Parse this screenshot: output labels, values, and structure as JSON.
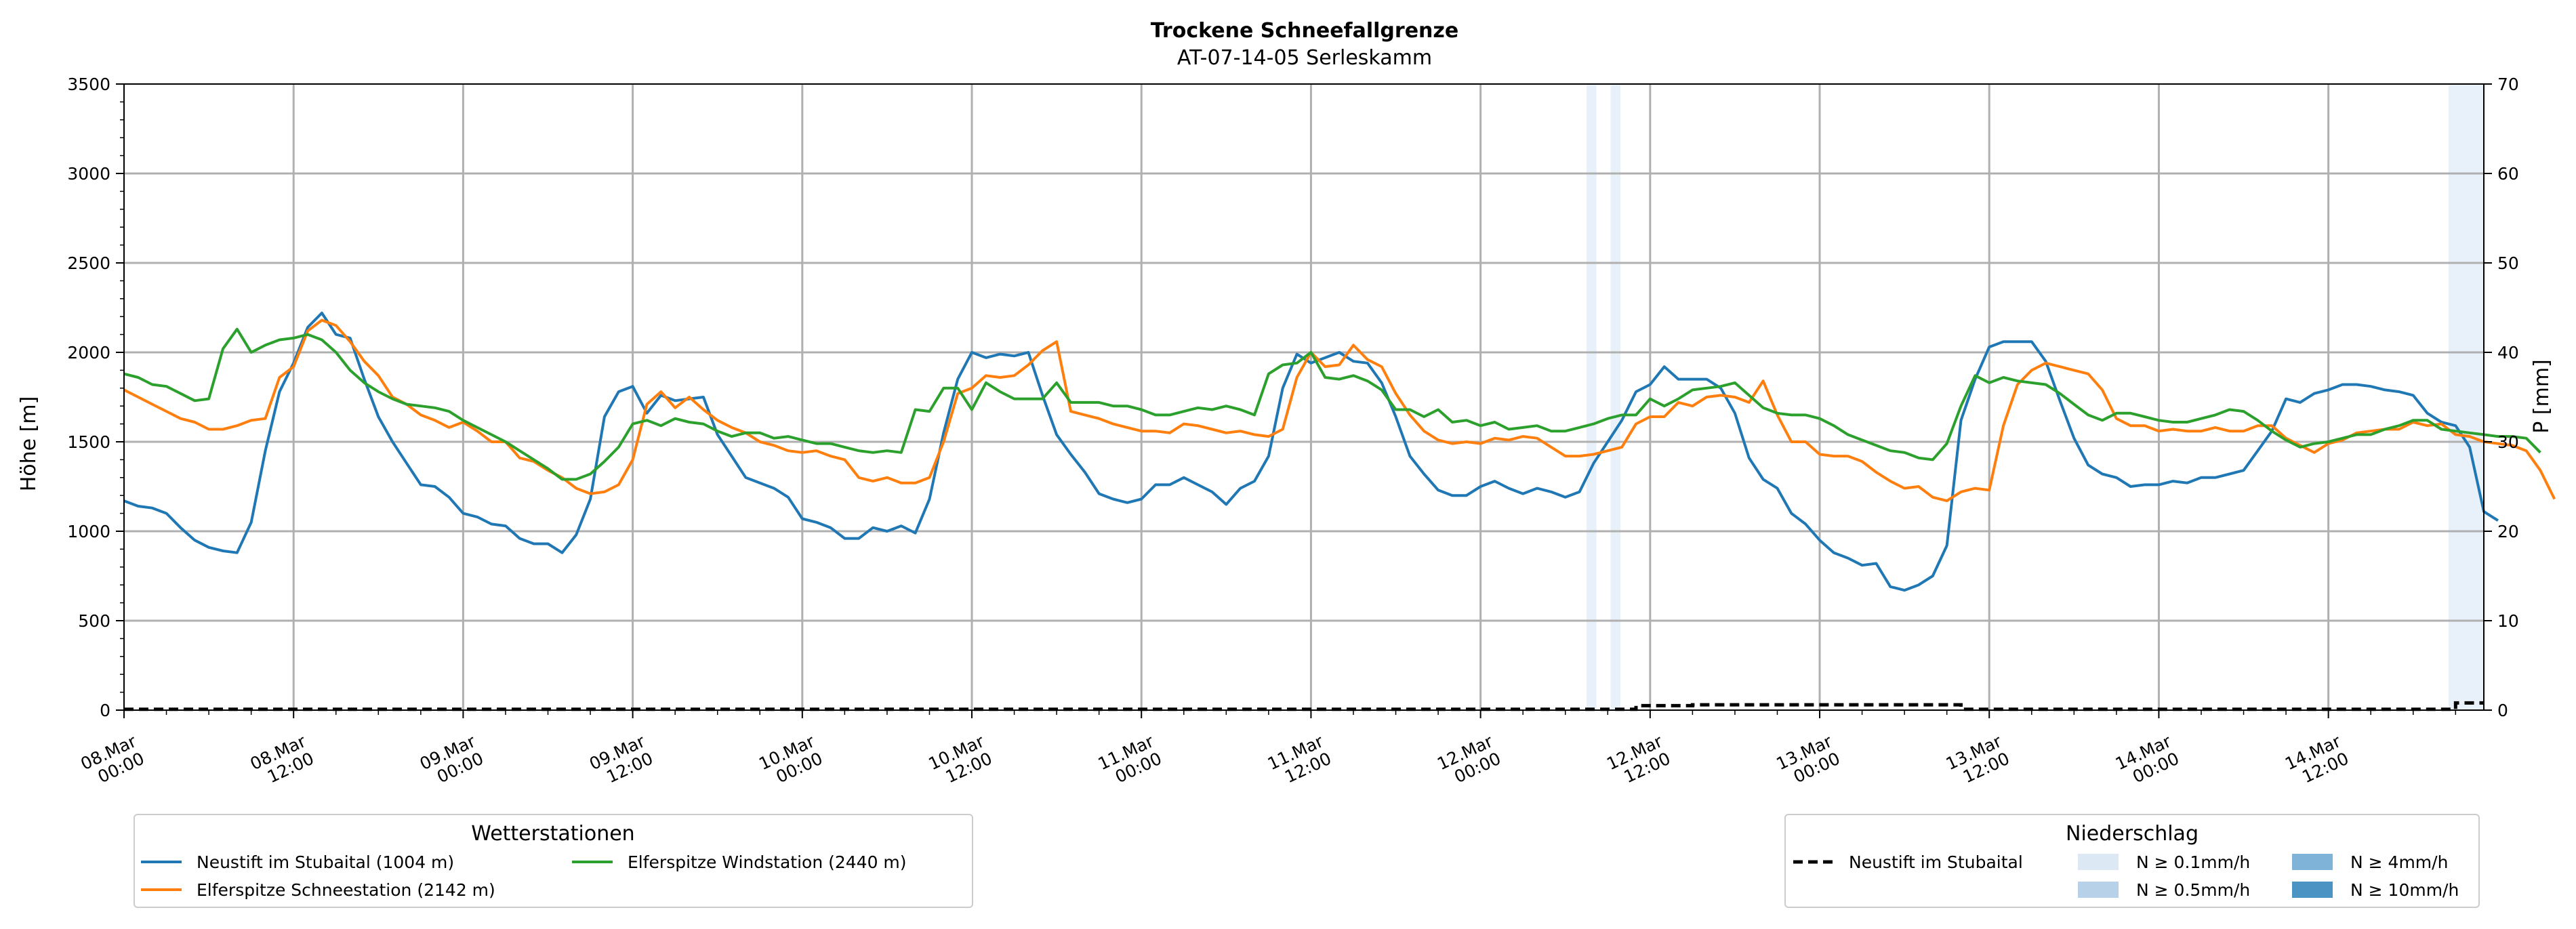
{
  "chart_data": {
    "type": "line",
    "title": "Trockene Schneefallgrenze",
    "subtitle": "AT-07-14-05 Serleskamm",
    "ylabel": "Höhe [m]",
    "ylabel_right": "P [mm]",
    "ylim": [
      0,
      3500
    ],
    "ylim_right": [
      0,
      70
    ],
    "yticks": [
      0,
      500,
      1000,
      1500,
      2000,
      2500,
      3000,
      3500
    ],
    "yticks_right": [
      0,
      10,
      20,
      30,
      40,
      50,
      60,
      70
    ],
    "grid": true,
    "x_start": "08.Mar 00:00",
    "x_end": "14.Mar 23:00",
    "x_step_hours": 1,
    "xticks": [
      {
        "hour": 0,
        "l1": "08.Mar",
        "l2": "00:00"
      },
      {
        "hour": 12,
        "l1": "08.Mar",
        "l2": "12:00"
      },
      {
        "hour": 24,
        "l1": "09.Mar",
        "l2": "00:00"
      },
      {
        "hour": 36,
        "l1": "09.Mar",
        "l2": "12:00"
      },
      {
        "hour": 48,
        "l1": "10.Mar",
        "l2": "00:00"
      },
      {
        "hour": 60,
        "l1": "10.Mar",
        "l2": "12:00"
      },
      {
        "hour": 72,
        "l1": "11.Mar",
        "l2": "00:00"
      },
      {
        "hour": 84,
        "l1": "11.Mar",
        "l2": "12:00"
      },
      {
        "hour": 96,
        "l1": "12.Mar",
        "l2": "00:00"
      },
      {
        "hour": 108,
        "l1": "12.Mar",
        "l2": "12:00"
      },
      {
        "hour": 120,
        "l1": "13.Mar",
        "l2": "00:00"
      },
      {
        "hour": 132,
        "l1": "13.Mar",
        "l2": "12:00"
      },
      {
        "hour": 144,
        "l1": "14.Mar",
        "l2": "00:00"
      },
      {
        "hour": 156,
        "l1": "14.Mar",
        "l2": "12:00"
      }
    ],
    "series": [
      {
        "name": "Neustift im Stubaital (1004 m)",
        "color": "#1f77b4",
        "values": [
          1170,
          1140,
          1130,
          1100,
          1020,
          950,
          910,
          890,
          880,
          1050,
          1450,
          1780,
          1940,
          2140,
          2220,
          2100,
          2080,
          1850,
          1640,
          1500,
          1380,
          1260,
          1250,
          1190,
          1100,
          1080,
          1040,
          1030,
          960,
          930,
          930,
          880,
          980,
          1180,
          1640,
          1780,
          1810,
          1660,
          1760,
          1730,
          1740,
          1750,
          1540,
          1420,
          1300,
          1270,
          1240,
          1190,
          1070,
          1050,
          1020,
          960,
          960,
          1020,
          1000,
          1030,
          990,
          1180,
          1550,
          1850,
          2000,
          1970,
          1990,
          1980,
          2000,
          1760,
          1540,
          1430,
          1330,
          1210,
          1180,
          1160,
          1180,
          1260,
          1260,
          1300,
          1260,
          1220,
          1150,
          1240,
          1280,
          1420,
          1800,
          1990,
          1940,
          1970,
          2000,
          1950,
          1940,
          1830,
          1640,
          1420,
          1320,
          1230,
          1200,
          1200,
          1250,
          1280,
          1240,
          1210,
          1240,
          1220,
          1190,
          1220,
          1380,
          1500,
          1620,
          1780,
          1820,
          1920,
          1850,
          1850,
          1850,
          1800,
          1660,
          1410,
          1290,
          1240,
          1100,
          1040,
          950,
          880,
          850,
          810,
          820,
          690,
          670,
          700,
          750,
          920,
          1620,
          1850,
          2030,
          2060,
          2060,
          2060,
          1950,
          1730,
          1520,
          1370,
          1320,
          1300,
          1250,
          1260,
          1260,
          1280,
          1270,
          1300,
          1300,
          1320,
          1340,
          1450,
          1560,
          1740,
          1720,
          1770,
          1790,
          1820,
          1820,
          1810,
          1790,
          1780,
          1760,
          1660,
          1610,
          1590,
          1470,
          1110,
          1060
        ]
      },
      {
        "name": "Elferspitze Schneestation (2142 m)",
        "color": "#ff7f0e",
        "values": [
          1790,
          1750,
          1710,
          1670,
          1630,
          1610,
          1570,
          1570,
          1590,
          1620,
          1630,
          1860,
          1920,
          2120,
          2180,
          2150,
          2060,
          1950,
          1870,
          1750,
          1710,
          1650,
          1620,
          1580,
          1610,
          1560,
          1500,
          1500,
          1410,
          1390,
          1340,
          1300,
          1240,
          1210,
          1220,
          1260,
          1400,
          1710,
          1780,
          1690,
          1750,
          1680,
          1620,
          1580,
          1550,
          1500,
          1480,
          1450,
          1440,
          1450,
          1420,
          1400,
          1300,
          1280,
          1300,
          1270,
          1270,
          1300,
          1500,
          1770,
          1800,
          1870,
          1860,
          1870,
          1930,
          2010,
          2060,
          1670,
          1650,
          1630,
          1600,
          1580,
          1560,
          1560,
          1550,
          1600,
          1590,
          1570,
          1550,
          1560,
          1540,
          1530,
          1570,
          1860,
          2000,
          1920,
          1930,
          2040,
          1960,
          1920,
          1770,
          1650,
          1560,
          1510,
          1490,
          1500,
          1490,
          1520,
          1510,
          1530,
          1520,
          1470,
          1420,
          1420,
          1430,
          1450,
          1470,
          1600,
          1640,
          1640,
          1720,
          1700,
          1750,
          1760,
          1750,
          1720,
          1840,
          1650,
          1500,
          1500,
          1430,
          1420,
          1420,
          1390,
          1330,
          1280,
          1240,
          1250,
          1190,
          1170,
          1220,
          1240,
          1230,
          1590,
          1820,
          1900,
          1940,
          1920,
          1900,
          1880,
          1790,
          1630,
          1590,
          1590,
          1560,
          1570,
          1560,
          1560,
          1580,
          1560,
          1560,
          1590,
          1590,
          1520,
          1480,
          1440,
          1490,
          1510,
          1550,
          1560,
          1570,
          1570,
          1610,
          1590,
          1600,
          1540,
          1530,
          1500,
          1490,
          1480,
          1450,
          1340,
          1180
        ]
      },
      {
        "name": "Elferspitze Windstation (2440 m)",
        "color": "#2ca02c",
        "values": [
          1880,
          1860,
          1820,
          1810,
          1770,
          1730,
          1740,
          2020,
          2130,
          2000,
          2040,
          2070,
          2080,
          2100,
          2070,
          2000,
          1900,
          1830,
          1780,
          1740,
          1710,
          1700,
          1690,
          1670,
          1620,
          1580,
          1540,
          1500,
          1450,
          1400,
          1350,
          1290,
          1290,
          1320,
          1390,
          1470,
          1600,
          1620,
          1590,
          1630,
          1610,
          1600,
          1560,
          1530,
          1550,
          1550,
          1520,
          1530,
          1510,
          1490,
          1490,
          1470,
          1450,
          1440,
          1450,
          1440,
          1680,
          1670,
          1800,
          1800,
          1680,
          1830,
          1780,
          1740,
          1740,
          1740,
          1830,
          1720,
          1720,
          1720,
          1700,
          1700,
          1680,
          1650,
          1650,
          1670,
          1690,
          1680,
          1700,
          1680,
          1650,
          1880,
          1930,
          1940,
          2000,
          1860,
          1850,
          1870,
          1840,
          1790,
          1680,
          1680,
          1640,
          1680,
          1610,
          1620,
          1590,
          1610,
          1570,
          1580,
          1590,
          1560,
          1560,
          1580,
          1600,
          1630,
          1650,
          1650,
          1740,
          1700,
          1740,
          1790,
          1800,
          1810,
          1830,
          1760,
          1690,
          1660,
          1650,
          1650,
          1630,
          1590,
          1540,
          1510,
          1480,
          1450,
          1440,
          1410,
          1400,
          1490,
          1700,
          1870,
          1830,
          1860,
          1840,
          1830,
          1820,
          1770,
          1710,
          1650,
          1620,
          1660,
          1660,
          1640,
          1620,
          1610,
          1610,
          1630,
          1650,
          1680,
          1670,
          1620,
          1560,
          1510,
          1470,
          1490,
          1500,
          1520,
          1540,
          1540,
          1570,
          1590,
          1620,
          1620,
          1570,
          1560,
          1550,
          1540,
          1530,
          1530,
          1520,
          1440
        ]
      }
    ],
    "precip_line": {
      "name": "Neustift im Stubaital",
      "color": "#000000",
      "style": "dashed",
      "axis": "right",
      "segments": [
        {
          "from_hour": 0,
          "to_hour": 107,
          "value": 0.1
        },
        {
          "from_hour": 107,
          "to_hour": 111,
          "value": 0.5
        },
        {
          "from_hour": 111,
          "to_hour": 130,
          "value": 0.6
        },
        {
          "from_hour": 130,
          "to_hour": 165,
          "value": 0.1
        },
        {
          "from_hour": 165,
          "to_hour": 167,
          "value": 0.8
        }
      ]
    },
    "precip_bands": [
      {
        "from_hour": 103.5,
        "to_hour": 104.2,
        "color": "#e8f0fa"
      },
      {
        "from_hour": 105.2,
        "to_hour": 105.9,
        "color": "#e8f0fa"
      },
      {
        "from_hour": 164.5,
        "to_hour": 167,
        "color": "#e8f0fa"
      }
    ],
    "legend_stations": {
      "title": "Wetterstationen",
      "position": "bottom-left"
    },
    "legend_precip": {
      "title": "Niederschlag",
      "position": "bottom-right",
      "line_label": "Neustift im Stubaital",
      "classes": [
        {
          "label": "N ≥ 0.1mm/h",
          "color": "#dce9f5"
        },
        {
          "label": "N ≥ 0.5mm/h",
          "color": "#b7d2e8"
        },
        {
          "label": "N ≥ 4mm/h",
          "color": "#7fb3d8"
        },
        {
          "label": "N ≥ 10mm/h",
          "color": "#4a93c3"
        }
      ]
    }
  }
}
